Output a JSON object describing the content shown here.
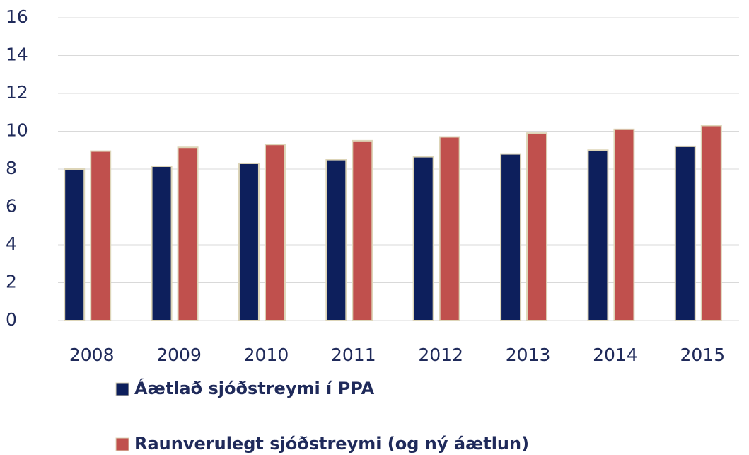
{
  "chart_data": {
    "type": "bar",
    "categories": [
      "2008",
      "2009",
      "2010",
      "2011",
      "2012",
      "2013",
      "2014",
      "2015"
    ],
    "series": [
      {
        "name": "Áætlað sjóðstreymi í PPA",
        "color": "#0d1f5c",
        "values": [
          8,
          8.15,
          8.3,
          8.5,
          8.65,
          8.8,
          9,
          9.2
        ]
      },
      {
        "name": "Raunverulegt sjóðstreymi (og ný áætlun)",
        "color": "#c0504d",
        "values": [
          8.95,
          9.15,
          9.3,
          9.5,
          9.7,
          9.9,
          10.1,
          10.3
        ]
      }
    ],
    "ylim": [
      0,
      16
    ],
    "yticks": [
      0,
      2,
      4,
      6,
      8,
      10,
      12,
      14,
      16
    ],
    "grid": true
  }
}
